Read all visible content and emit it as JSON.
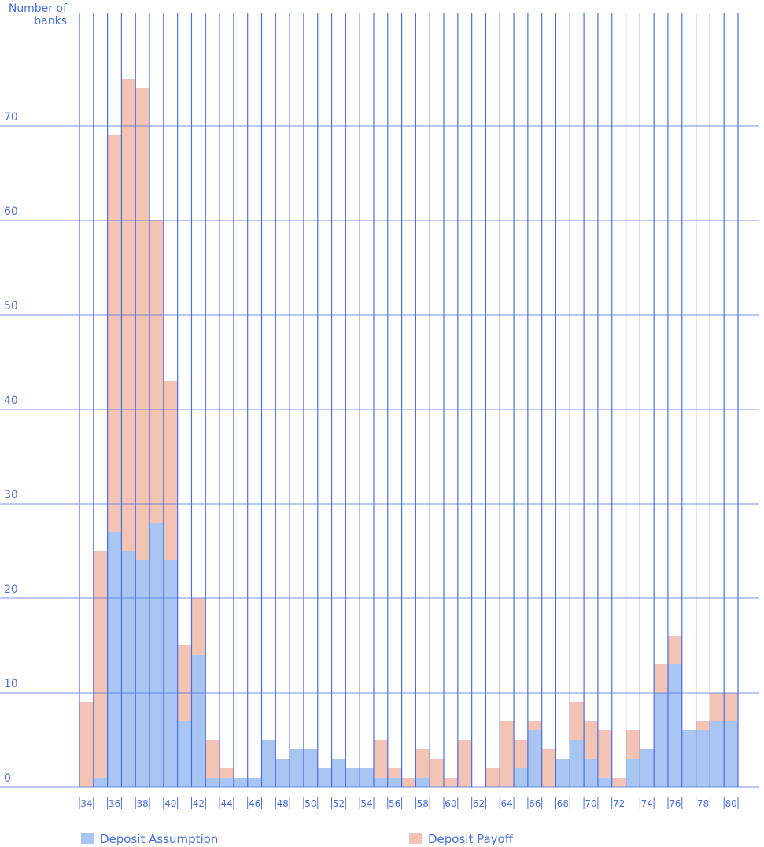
{
  "chart_data": {
    "type": "stacked_bar",
    "y_label": "Number of banks",
    "categories": [
      "34",
      null,
      "36",
      null,
      "38",
      null,
      "40",
      null,
      "42",
      null,
      "44",
      null,
      "46",
      null,
      "48",
      null,
      "50",
      null,
      "52",
      null,
      "54",
      null,
      "56",
      null,
      "58",
      null,
      "60",
      null,
      "62",
      null,
      "64",
      null,
      "66",
      null,
      "68",
      null,
      "70",
      null,
      "72",
      null,
      "74",
      null,
      "76",
      null,
      "78",
      null,
      "80"
    ],
    "series": [
      {
        "name": "Deposit Assumption",
        "color": "#a9c6f2",
        "values": [
          0,
          1,
          27,
          25,
          24,
          28,
          24,
          7,
          14,
          1,
          1,
          1,
          1,
          5,
          3,
          4,
          4,
          2,
          3,
          2,
          2,
          1,
          1,
          0,
          1,
          0,
          0,
          0,
          0,
          0,
          0,
          2,
          6,
          0,
          3,
          5,
          3,
          1,
          0,
          3,
          4,
          10,
          13,
          6,
          6,
          7,
          7
        ]
      },
      {
        "name": "Deposit Payoff",
        "color": "#f3c3b5",
        "values": [
          9,
          24,
          42,
          50,
          50,
          32,
          19,
          8,
          6,
          4,
          1,
          0,
          0,
          0,
          0,
          0,
          0,
          0,
          0,
          0,
          0,
          4,
          1,
          1,
          3,
          3,
          1,
          5,
          0,
          2,
          7,
          3,
          1,
          4,
          0,
          4,
          4,
          5,
          1,
          3,
          0,
          3,
          3,
          0,
          1,
          3,
          3
        ]
      }
    ],
    "ylim": [
      0,
      83
    ],
    "yticks": [
      0,
      10,
      20,
      30,
      40,
      50,
      60,
      70
    ],
    "grid": true,
    "legend": "bottom"
  }
}
